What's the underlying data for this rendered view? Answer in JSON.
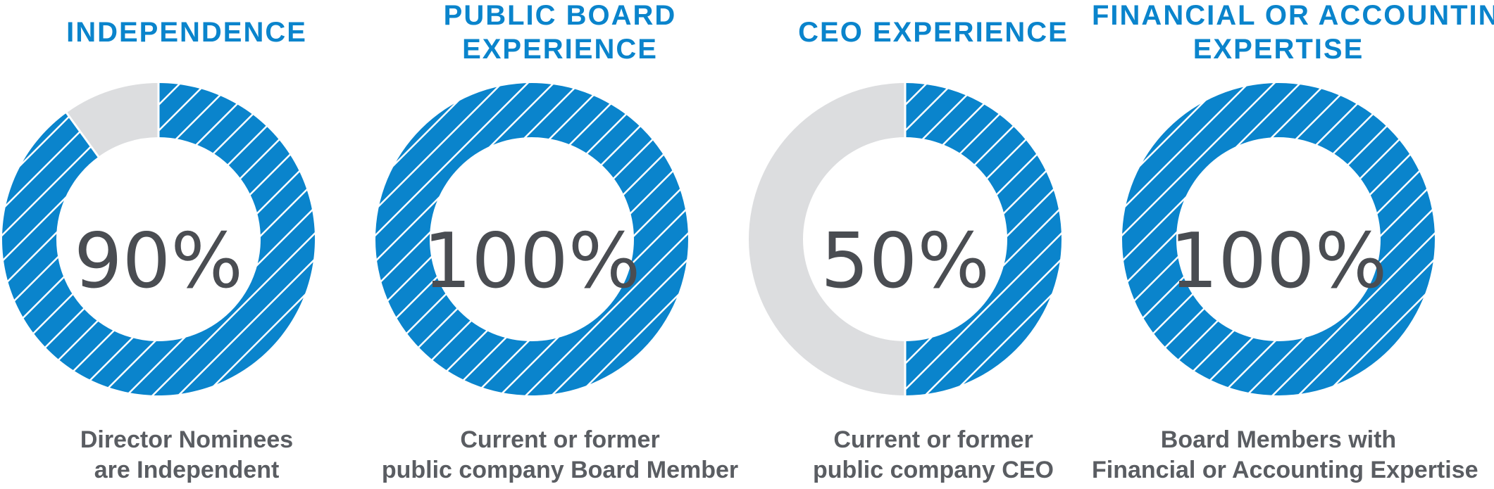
{
  "colors": {
    "accent": "#0a84cc",
    "track": "#dcdddf",
    "value_text": "#4a4d52",
    "caption_text": "#5a5d62"
  },
  "metrics": [
    {
      "title_lines": [
        "INDEPENDENCE"
      ],
      "value": "90%",
      "caption_lines": [
        "Director Nominees",
        "are Independent"
      ]
    },
    {
      "title_lines": [
        "PUBLIC BOARD",
        "EXPERIENCE"
      ],
      "value": "100%",
      "caption_lines": [
        "Current or former",
        "public company Board Member"
      ]
    },
    {
      "title_lines": [
        "CEO EXPERIENCE"
      ],
      "value": "50%",
      "caption_lines": [
        "Current or former",
        "public company CEO"
      ]
    },
    {
      "title_lines": [
        "FINANCIAL OR ACCOUNTING",
        "EXPERTISE"
      ],
      "value": "100%",
      "caption_lines": [
        "Board Members with",
        "Financial or Accounting Expertise"
      ]
    }
  ],
  "chart_data": [
    {
      "type": "pie",
      "categories": [
        "INDEPENDENCE",
        ""
      ],
      "values": [
        90,
        10
      ]
    },
    {
      "type": "pie",
      "categories": [
        "PUBLIC BOARD EXPERIENCE",
        ""
      ],
      "values": [
        100,
        0
      ]
    },
    {
      "type": "pie",
      "categories": [
        "CEO EXPERIENCE",
        ""
      ],
      "values": [
        50,
        50
      ]
    },
    {
      "type": "pie",
      "categories": [
        "FINANCIAL OR ACCOUNTING EXPERTISE",
        ""
      ],
      "values": [
        100,
        0
      ]
    }
  ]
}
